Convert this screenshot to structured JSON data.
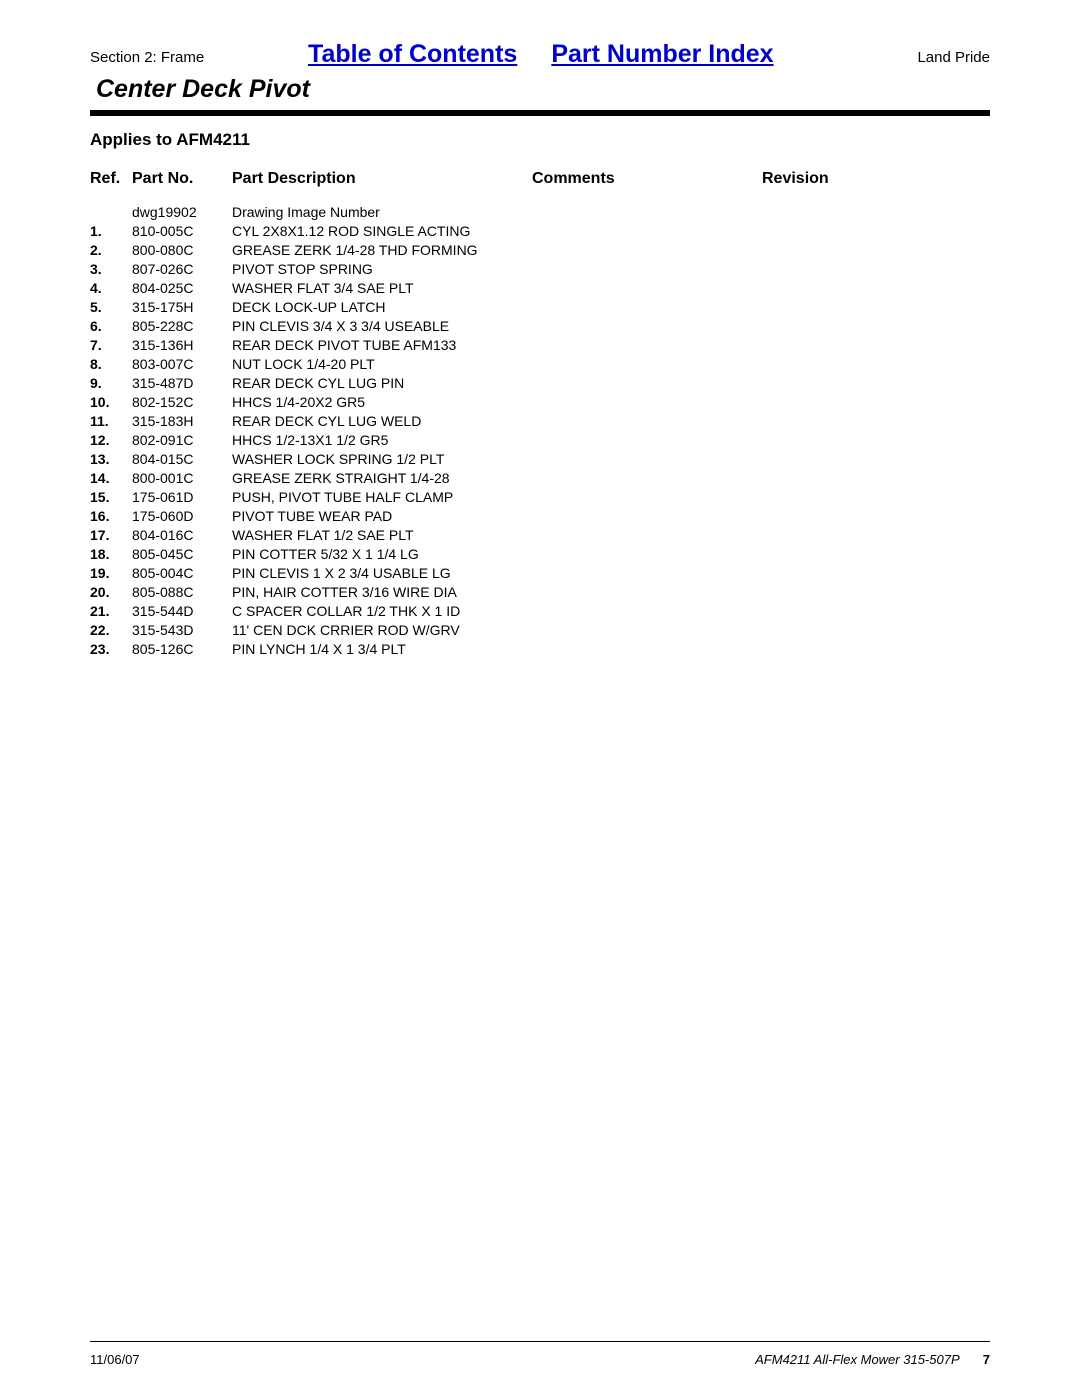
{
  "header": {
    "section_label": "Section 2: Frame",
    "link_toc": "Table of Contents",
    "link_pni": "Part Number Index",
    "brand": "Land Pride",
    "title": "Center Deck Pivot",
    "applies_to": "Applies to AFM4211"
  },
  "table": {
    "headers": {
      "ref": "Ref.",
      "partno": "Part No.",
      "desc": "Part Description",
      "comments": "Comments",
      "revision": "Revision"
    },
    "rows": [
      {
        "ref": "",
        "partno": "dwg19902",
        "desc": "Drawing Image Number",
        "comments": "",
        "revision": ""
      },
      {
        "ref": "1.",
        "partno": "810-005C",
        "desc": "CYL 2X8X1.12 ROD SINGLE ACTING",
        "comments": "",
        "revision": ""
      },
      {
        "ref": "2.",
        "partno": "800-080C",
        "desc": "GREASE ZERK 1/4-28 THD FORMING",
        "comments": "",
        "revision": ""
      },
      {
        "ref": "3.",
        "partno": "807-026C",
        "desc": "PIVOT STOP SPRING",
        "comments": "",
        "revision": ""
      },
      {
        "ref": "4.",
        "partno": "804-025C",
        "desc": "WASHER FLAT 3/4 SAE PLT",
        "comments": "",
        "revision": ""
      },
      {
        "ref": "5.",
        "partno": "315-175H",
        "desc": "DECK LOCK-UP LATCH",
        "comments": "",
        "revision": ""
      },
      {
        "ref": "6.",
        "partno": "805-228C",
        "desc": "PIN CLEVIS 3/4 X 3 3/4 USEABLE",
        "comments": "",
        "revision": ""
      },
      {
        "ref": "7.",
        "partno": "315-136H",
        "desc": "REAR DECK PIVOT TUBE AFM133",
        "comments": "",
        "revision": ""
      },
      {
        "ref": "8.",
        "partno": "803-007C",
        "desc": "NUT LOCK 1/4-20 PLT",
        "comments": "",
        "revision": ""
      },
      {
        "ref": "9.",
        "partno": "315-487D",
        "desc": "REAR DECK CYL LUG PIN",
        "comments": "",
        "revision": ""
      },
      {
        "ref": "10.",
        "partno": "802-152C",
        "desc": "HHCS 1/4-20X2 GR5",
        "comments": "",
        "revision": ""
      },
      {
        "ref": "11.",
        "partno": "315-183H",
        "desc": "REAR DECK CYL LUG WELD",
        "comments": "",
        "revision": ""
      },
      {
        "ref": "12.",
        "partno": "802-091C",
        "desc": "HHCS 1/2-13X1 1/2 GR5",
        "comments": "",
        "revision": ""
      },
      {
        "ref": "13.",
        "partno": "804-015C",
        "desc": "WASHER LOCK SPRING 1/2 PLT",
        "comments": "",
        "revision": ""
      },
      {
        "ref": "14.",
        "partno": "800-001C",
        "desc": "GREASE ZERK STRAIGHT 1/4-28",
        "comments": "",
        "revision": ""
      },
      {
        "ref": "15.",
        "partno": "175-061D",
        "desc": "PUSH, PIVOT TUBE HALF CLAMP",
        "comments": "",
        "revision": ""
      },
      {
        "ref": "16.",
        "partno": "175-060D",
        "desc": "PIVOT TUBE WEAR PAD",
        "comments": "",
        "revision": ""
      },
      {
        "ref": "17.",
        "partno": "804-016C",
        "desc": "WASHER FLAT 1/2 SAE PLT",
        "comments": "",
        "revision": ""
      },
      {
        "ref": "18.",
        "partno": "805-045C",
        "desc": "PIN COTTER 5/32 X 1 1/4 LG",
        "comments": "",
        "revision": ""
      },
      {
        "ref": "19.",
        "partno": "805-004C",
        "desc": "PIN CLEVIS 1 X 2 3/4 USABLE LG",
        "comments": "",
        "revision": ""
      },
      {
        "ref": "20.",
        "partno": "805-088C",
        "desc": "PIN, HAIR COTTER 3/16 WIRE DIA",
        "comments": "",
        "revision": ""
      },
      {
        "ref": "21.",
        "partno": "315-544D",
        "desc": "C SPACER COLLAR 1/2 THK X 1 ID",
        "comments": "",
        "revision": ""
      },
      {
        "ref": "22.",
        "partno": "315-543D",
        "desc": "11' CEN DCK CRRIER ROD W/GRV",
        "comments": "",
        "revision": ""
      },
      {
        "ref": "23.",
        "partno": "805-126C",
        "desc": "PIN LYNCH 1/4 X 1 3/4 PLT",
        "comments": "",
        "revision": ""
      }
    ]
  },
  "footer": {
    "date": "11/06/07",
    "doc": "AFM4211 All-Flex Mower 315-507P",
    "page": "7"
  },
  "styling": {
    "link_color": "#0000cc",
    "text_color": "#000000",
    "background": "#ffffff",
    "divider_color": "#000000",
    "title_fontsize": 25,
    "header_link_fontsize": 25,
    "section_label_fontsize": 15,
    "applies_fontsize": 17,
    "table_header_fontsize": 16,
    "table_body_fontsize": 14,
    "footer_fontsize": 13
  }
}
